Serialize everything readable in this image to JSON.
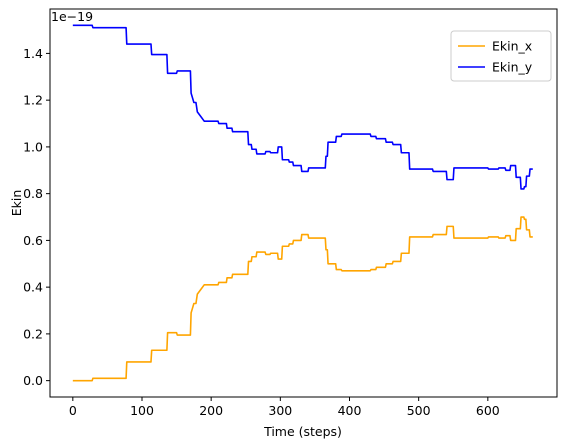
{
  "chart_data": {
    "type": "line",
    "title": "",
    "xlabel": "Time (steps)",
    "ylabel": "Ekin",
    "offset_text": "1e−19",
    "xlim": [
      -33,
      700
    ],
    "ylim": [
      -0.07,
      1.59
    ],
    "xticks": [
      0,
      100,
      200,
      300,
      400,
      500,
      600
    ],
    "yticks": [
      0.0,
      0.2,
      0.4,
      0.6,
      0.8,
      1.0,
      1.2,
      1.4
    ],
    "ytick_labels": [
      "0.0",
      "0.2",
      "0.4",
      "0.6",
      "0.8",
      "1.0",
      "1.2",
      "1.4"
    ],
    "grid": false,
    "legend_position": "top-right",
    "series": [
      {
        "name": "Ekin_x",
        "color": "#ffa500",
        "x": [
          0,
          28,
          29,
          77,
          78,
          113,
          114,
          136,
          137,
          150,
          151,
          170,
          171,
          173,
          175,
          178,
          180,
          185,
          190,
          210,
          211,
          222,
          223,
          230,
          231,
          253,
          254,
          258,
          259,
          265,
          266,
          278,
          279,
          285,
          286,
          296,
          297,
          302,
          303,
          312,
          313,
          318,
          319,
          330,
          331,
          340,
          341,
          365,
          366,
          368,
          369,
          380,
          381,
          388,
          389,
          430,
          431,
          438,
          439,
          452,
          453,
          462,
          463,
          474,
          475,
          486,
          487,
          520,
          521,
          540,
          541,
          550,
          551,
          600,
          601,
          615,
          616,
          625,
          626,
          632,
          633,
          640,
          641,
          647,
          648,
          652,
          653,
          655,
          656,
          660,
          661,
          665
        ],
        "y": [
          0.0,
          0.0,
          0.01,
          0.01,
          0.08,
          0.08,
          0.13,
          0.13,
          0.205,
          0.205,
          0.195,
          0.195,
          0.29,
          0.31,
          0.33,
          0.33,
          0.37,
          0.39,
          0.41,
          0.41,
          0.42,
          0.42,
          0.44,
          0.44,
          0.455,
          0.455,
          0.51,
          0.51,
          0.53,
          0.53,
          0.55,
          0.55,
          0.54,
          0.54,
          0.545,
          0.545,
          0.52,
          0.52,
          0.575,
          0.575,
          0.585,
          0.585,
          0.6,
          0.6,
          0.625,
          0.625,
          0.61,
          0.61,
          0.56,
          0.56,
          0.5,
          0.5,
          0.475,
          0.475,
          0.47,
          0.47,
          0.475,
          0.475,
          0.485,
          0.485,
          0.5,
          0.5,
          0.51,
          0.51,
          0.545,
          0.545,
          0.615,
          0.615,
          0.625,
          0.625,
          0.66,
          0.66,
          0.61,
          0.61,
          0.615,
          0.615,
          0.61,
          0.61,
          0.62,
          0.62,
          0.6,
          0.6,
          0.65,
          0.65,
          0.7,
          0.7,
          0.69,
          0.69,
          0.645,
          0.645,
          0.615,
          0.615
        ]
      },
      {
        "name": "Ekin_y",
        "color": "#0000ff",
        "x": [
          0,
          28,
          29,
          77,
          78,
          113,
          114,
          136,
          137,
          150,
          151,
          170,
          171,
          173,
          175,
          178,
          180,
          185,
          190,
          210,
          211,
          222,
          223,
          230,
          231,
          253,
          254,
          258,
          259,
          265,
          266,
          278,
          279,
          285,
          286,
          296,
          297,
          302,
          303,
          312,
          313,
          318,
          319,
          330,
          331,
          340,
          341,
          365,
          366,
          368,
          369,
          380,
          381,
          388,
          389,
          430,
          431,
          438,
          439,
          452,
          453,
          462,
          463,
          474,
          475,
          486,
          487,
          520,
          521,
          540,
          541,
          550,
          551,
          600,
          601,
          615,
          616,
          625,
          626,
          632,
          633,
          640,
          641,
          647,
          648,
          652,
          653,
          655,
          656,
          660,
          661,
          665
        ],
        "y": [
          1.52,
          1.52,
          1.51,
          1.51,
          1.44,
          1.44,
          1.395,
          1.395,
          1.315,
          1.315,
          1.325,
          1.325,
          1.23,
          1.21,
          1.19,
          1.19,
          1.15,
          1.13,
          1.11,
          1.11,
          1.1,
          1.1,
          1.08,
          1.08,
          1.065,
          1.065,
          1.01,
          1.01,
          0.99,
          0.99,
          0.97,
          0.97,
          0.98,
          0.98,
          0.975,
          0.975,
          1.0,
          1.0,
          0.945,
          0.945,
          0.935,
          0.935,
          0.92,
          0.92,
          0.895,
          0.895,
          0.91,
          0.91,
          0.96,
          0.96,
          1.02,
          1.02,
          1.045,
          1.045,
          1.055,
          1.055,
          1.045,
          1.045,
          1.035,
          1.035,
          1.02,
          1.02,
          1.01,
          1.01,
          0.975,
          0.975,
          0.905,
          0.905,
          0.895,
          0.895,
          0.86,
          0.86,
          0.91,
          0.91,
          0.905,
          0.905,
          0.91,
          0.91,
          0.9,
          0.9,
          0.92,
          0.92,
          0.87,
          0.87,
          0.82,
          0.82,
          0.83,
          0.83,
          0.875,
          0.875,
          0.905,
          0.905
        ]
      }
    ]
  }
}
